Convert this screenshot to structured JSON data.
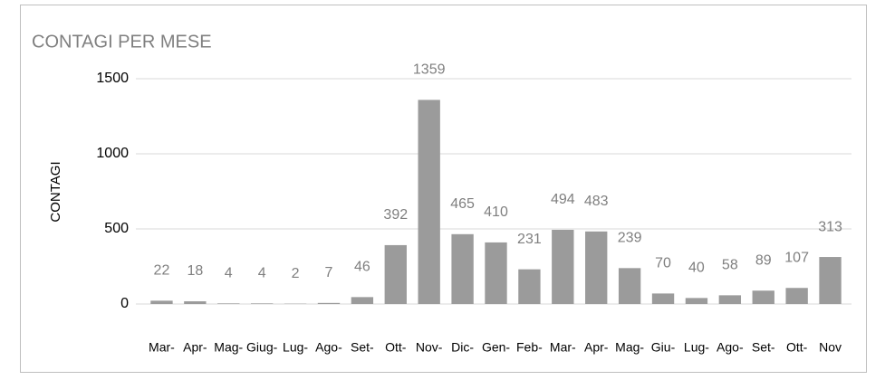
{
  "chart_data": {
    "type": "bar",
    "title": "CONTAGI PER MESE",
    "y_label": "CONTAGI",
    "categories": [
      "Mar-",
      "Apr-",
      "Mag-",
      "Giug-",
      "Lug-",
      "Ago-",
      "Set-",
      "Ott-",
      "Nov-",
      "Dic-",
      "Gen-",
      "Feb-",
      "Mar-",
      "Apr-",
      "Mag-",
      "Giu-",
      "Lug-",
      "Ago-",
      "Set-",
      "Ott-",
      "Nov"
    ],
    "values": [
      22,
      18,
      4,
      4,
      2,
      7,
      46,
      392,
      1359,
      465,
      410,
      231,
      494,
      483,
      239,
      70,
      40,
      58,
      89,
      107,
      313
    ],
    "color": "#9b9b9b",
    "ylim": [
      0,
      1500
    ],
    "yticks": [
      0,
      500,
      1000,
      1500
    ],
    "grid": true
  }
}
